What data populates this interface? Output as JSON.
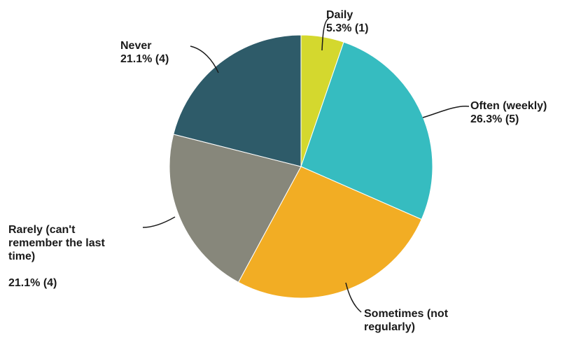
{
  "chart_data": {
    "type": "pie",
    "title": "",
    "slices": [
      {
        "name": "Daily",
        "label_lines": [
          "Daily",
          "5.3% (1)"
        ],
        "value": 1,
        "percent": 5.3,
        "color": "#d4d82e"
      },
      {
        "name": "Often (weekly)",
        "label_lines": [
          "Often (weekly)",
          "26.3% (5)"
        ],
        "value": 5,
        "percent": 26.3,
        "color": "#36bcc0"
      },
      {
        "name": "Sometimes (not regularly)",
        "label_lines": [
          "Sometimes (not",
          "regularly)"
        ],
        "value": 5,
        "percent": 26.3,
        "color": "#f2ad24"
      },
      {
        "name": "Rarely (can't remember the last time)",
        "label_lines": [
          "Rarely (can't",
          "remember the last",
          "time)",
          "",
          "21.1% (4)"
        ],
        "value": 4,
        "percent": 21.1,
        "color": "#87877b"
      },
      {
        "name": "Never",
        "label_lines": [
          "Never",
          "21.1% (4)"
        ],
        "value": 4,
        "percent": 21.1,
        "color": "#2e5b69"
      }
    ]
  }
}
